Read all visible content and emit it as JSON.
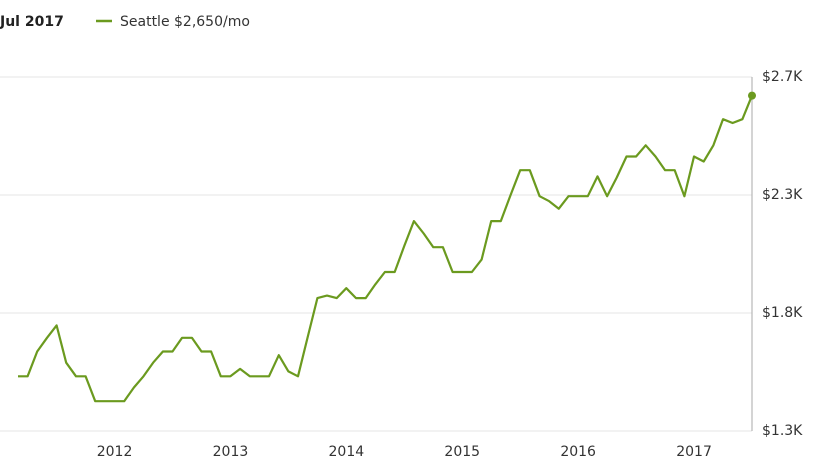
{
  "chart_data": {
    "type": "line",
    "date_label": "Jul 2017",
    "x": [
      2011.167,
      2011.25,
      2011.333,
      2011.417,
      2011.5,
      2011.583,
      2011.667,
      2011.75,
      2011.833,
      2011.917,
      2012.0,
      2012.083,
      2012.167,
      2012.25,
      2012.333,
      2012.417,
      2012.5,
      2012.583,
      2012.667,
      2012.75,
      2012.833,
      2012.917,
      2013.0,
      2013.083,
      2013.167,
      2013.25,
      2013.333,
      2013.417,
      2013.5,
      2013.583,
      2013.667,
      2013.75,
      2013.833,
      2013.917,
      2014.0,
      2014.083,
      2014.167,
      2014.25,
      2014.333,
      2014.417,
      2014.5,
      2014.583,
      2014.667,
      2014.75,
      2014.833,
      2014.917,
      2015.0,
      2015.083,
      2015.167,
      2015.25,
      2015.333,
      2015.417,
      2015.5,
      2015.583,
      2015.667,
      2015.75,
      2015.833,
      2015.917,
      2016.0,
      2016.083,
      2016.167,
      2016.25,
      2016.333,
      2016.417,
      2016.5,
      2016.583,
      2016.667,
      2016.75,
      2016.833,
      2016.917,
      2017.0,
      2017.083,
      2017.167,
      2017.25,
      2017.333,
      2017.417,
      2017.5
    ],
    "series": [
      {
        "name": "Seattle $2,650/mo",
        "color": "#6b9a1f",
        "values": [
          1520,
          1520,
          1620,
          1675,
          1725,
          1575,
          1520,
          1520,
          1420,
          1420,
          1420,
          1420,
          1475,
          1520,
          1575,
          1620,
          1620,
          1675,
          1675,
          1620,
          1620,
          1520,
          1520,
          1550,
          1520,
          1520,
          1520,
          1605,
          1540,
          1520,
          1680,
          1835,
          1845,
          1835,
          1875,
          1835,
          1835,
          1890,
          1940,
          1940,
          2045,
          2145,
          2095,
          2040,
          2040,
          1940,
          1940,
          1940,
          1990,
          2145,
          2145,
          2250,
          2350,
          2350,
          2245,
          2225,
          2195,
          2245,
          2245,
          2245,
          2325,
          2245,
          2320,
          2405,
          2405,
          2450,
          2405,
          2350,
          2350,
          2245,
          2405,
          2385,
          2450,
          2555,
          2540,
          2555,
          2650
        ]
      }
    ],
    "xlim": [
      2011.167,
      2017.5
    ],
    "xticks": [
      2012,
      2013,
      2014,
      2015,
      2016,
      2017
    ],
    "ylim": [
      1300,
      2725
    ],
    "yticks": [
      {
        "value": 1300,
        "label": "$1.3K"
      },
      {
        "value": 1775,
        "label": "$1.8K"
      },
      {
        "value": 2250,
        "label": "$2.3K"
      },
      {
        "value": 2725,
        "label": "$2.7K"
      }
    ],
    "grid": true
  }
}
